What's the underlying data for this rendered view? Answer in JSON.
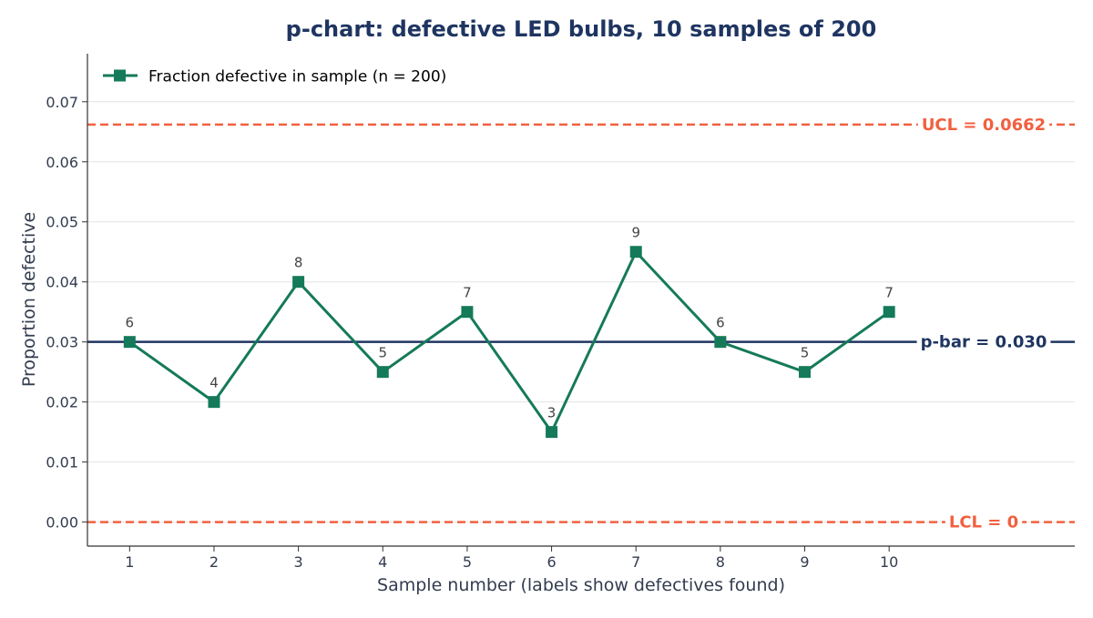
{
  "chart_data": {
    "type": "line",
    "title": "p-chart: defective LED bulbs, 10 samples of 200",
    "xlabel": "Sample number (labels show defectives found)",
    "ylabel": "Proportion defective",
    "x": [
      1,
      2,
      3,
      4,
      5,
      6,
      7,
      8,
      9,
      10
    ],
    "x_ticks": [
      "1",
      "2",
      "3",
      "4",
      "5",
      "6",
      "7",
      "8",
      "9",
      "10"
    ],
    "xlim": [
      0.5,
      12.2
    ],
    "ylim": [
      -0.004,
      0.078
    ],
    "y_ticks": [
      "0.00",
      "0.01",
      "0.02",
      "0.03",
      "0.04",
      "0.05",
      "0.06",
      "0.07"
    ],
    "y_tick_values": [
      0.0,
      0.01,
      0.02,
      0.03,
      0.04,
      0.05,
      0.06,
      0.07
    ],
    "grid": "horizontal",
    "legend_position": "top-left",
    "series": [
      {
        "name": "Fraction defective in sample (n = 200)",
        "values": [
          0.03,
          0.02,
          0.04,
          0.025,
          0.035,
          0.015,
          0.045,
          0.03,
          0.025,
          0.035
        ],
        "data_labels": [
          "6",
          "4",
          "8",
          "5",
          "7",
          "3",
          "9",
          "6",
          "5",
          "7"
        ],
        "color": "#157a5a",
        "marker": "square"
      }
    ],
    "reference_lines": [
      {
        "label": "UCL = 0.0662",
        "value": 0.0662,
        "style": "dashed",
        "color": "#f2603f"
      },
      {
        "label": "p-bar = 0.030",
        "value": 0.03,
        "style": "solid",
        "color": "#1f3561"
      },
      {
        "label": "LCL = 0",
        "value": 0.0,
        "style": "dashed",
        "color": "#f2603f"
      }
    ],
    "colors": {
      "title": "#1f3561",
      "axis_text": "#333c50",
      "grid": "#e3e3e3",
      "axis": "#333333"
    }
  }
}
